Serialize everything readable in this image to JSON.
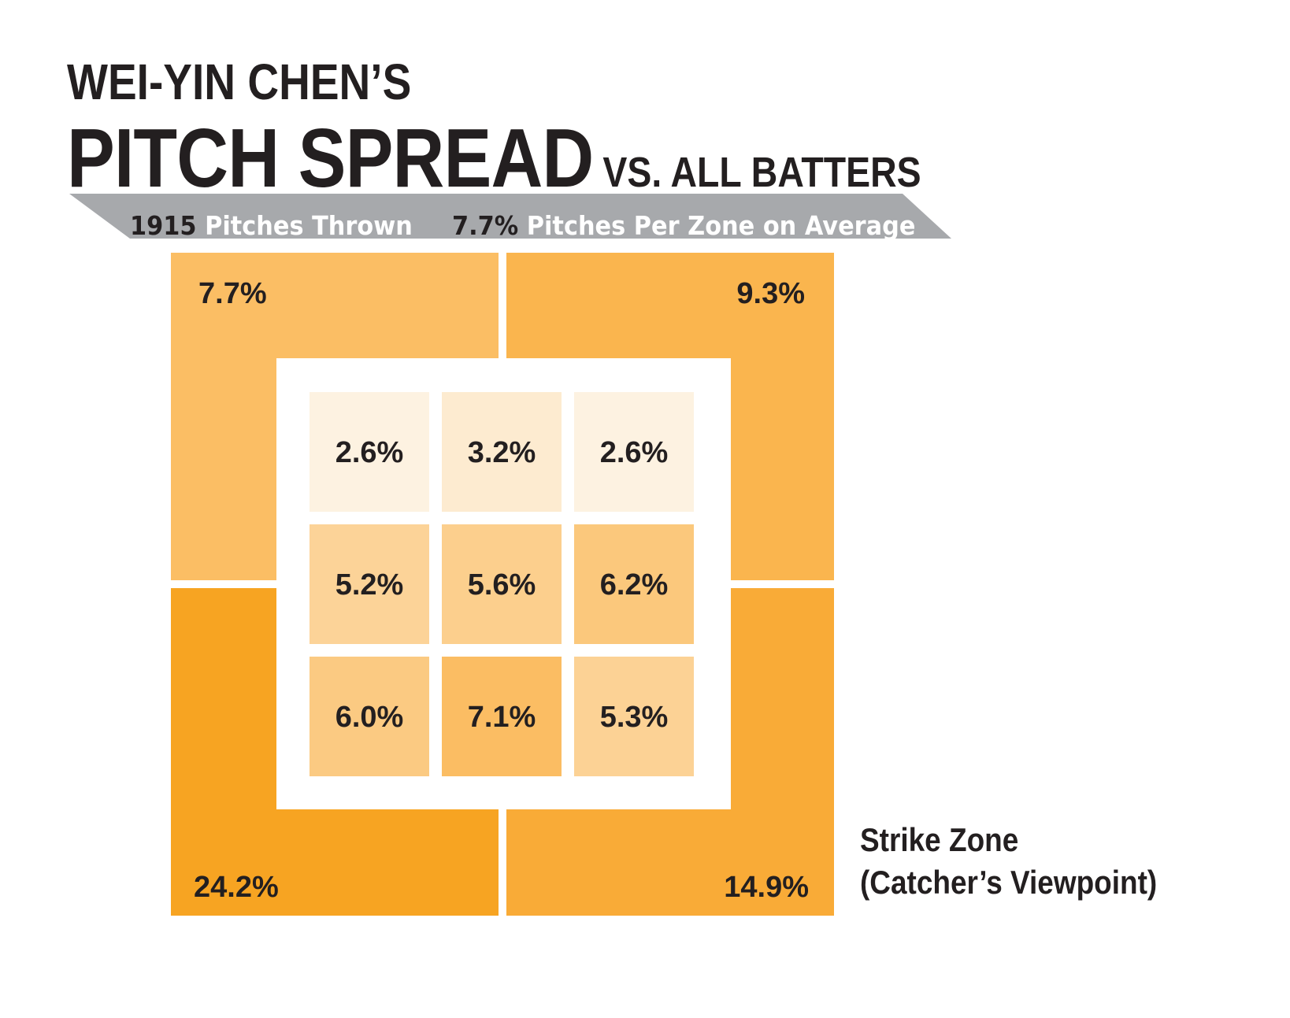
{
  "title": {
    "line1": "WEI-YIN CHEN’S",
    "main": "PITCH SPREAD",
    "suffix": "VS. ALL BATTERS"
  },
  "banner": {
    "pitches_value": "1915",
    "pitches_label": " Pitches Thrown",
    "average_value": "7.7%",
    "average_label": " Pitches Per Zone on Average"
  },
  "caption": {
    "line1": "Strike Zone",
    "line2": "(Catcher’s Viewpoint)"
  },
  "colors": {
    "banner_gray": "#a7a9ac",
    "title_text": "#231f20",
    "outer_top_left": "#fbbe64",
    "outer_top_right": "#fab54e",
    "outer_bottom_left": "#f7a422",
    "outer_bottom_right": "#f9ab37",
    "scale_low": "#fdf2e1",
    "scale_high": "#fbbd63"
  },
  "chart_data": {
    "type": "heatmap",
    "title": "WEI-YIN CHEN’S PITCH SPREAD VS. ALL BATTERS",
    "unit": "%",
    "total_pitches": 1915,
    "average_per_zone": 7.7,
    "outer_zones": {
      "top_left": 7.7,
      "top_right": 9.3,
      "bottom_left": 24.2,
      "bottom_right": 14.9
    },
    "outer_labels": {
      "top_left": "7.7%",
      "top_right": "9.3%",
      "bottom_left": "24.2%",
      "bottom_right": "14.9%"
    },
    "inner_grid": [
      [
        2.6,
        3.2,
        2.6
      ],
      [
        5.2,
        5.6,
        6.2
      ],
      [
        6.0,
        7.1,
        5.3
      ]
    ],
    "inner_labels": [
      [
        "2.6%",
        "3.2%",
        "2.6%"
      ],
      [
        "5.2%",
        "5.6%",
        "6.2%"
      ],
      [
        "6.0%",
        "7.1%",
        "5.3%"
      ]
    ]
  }
}
